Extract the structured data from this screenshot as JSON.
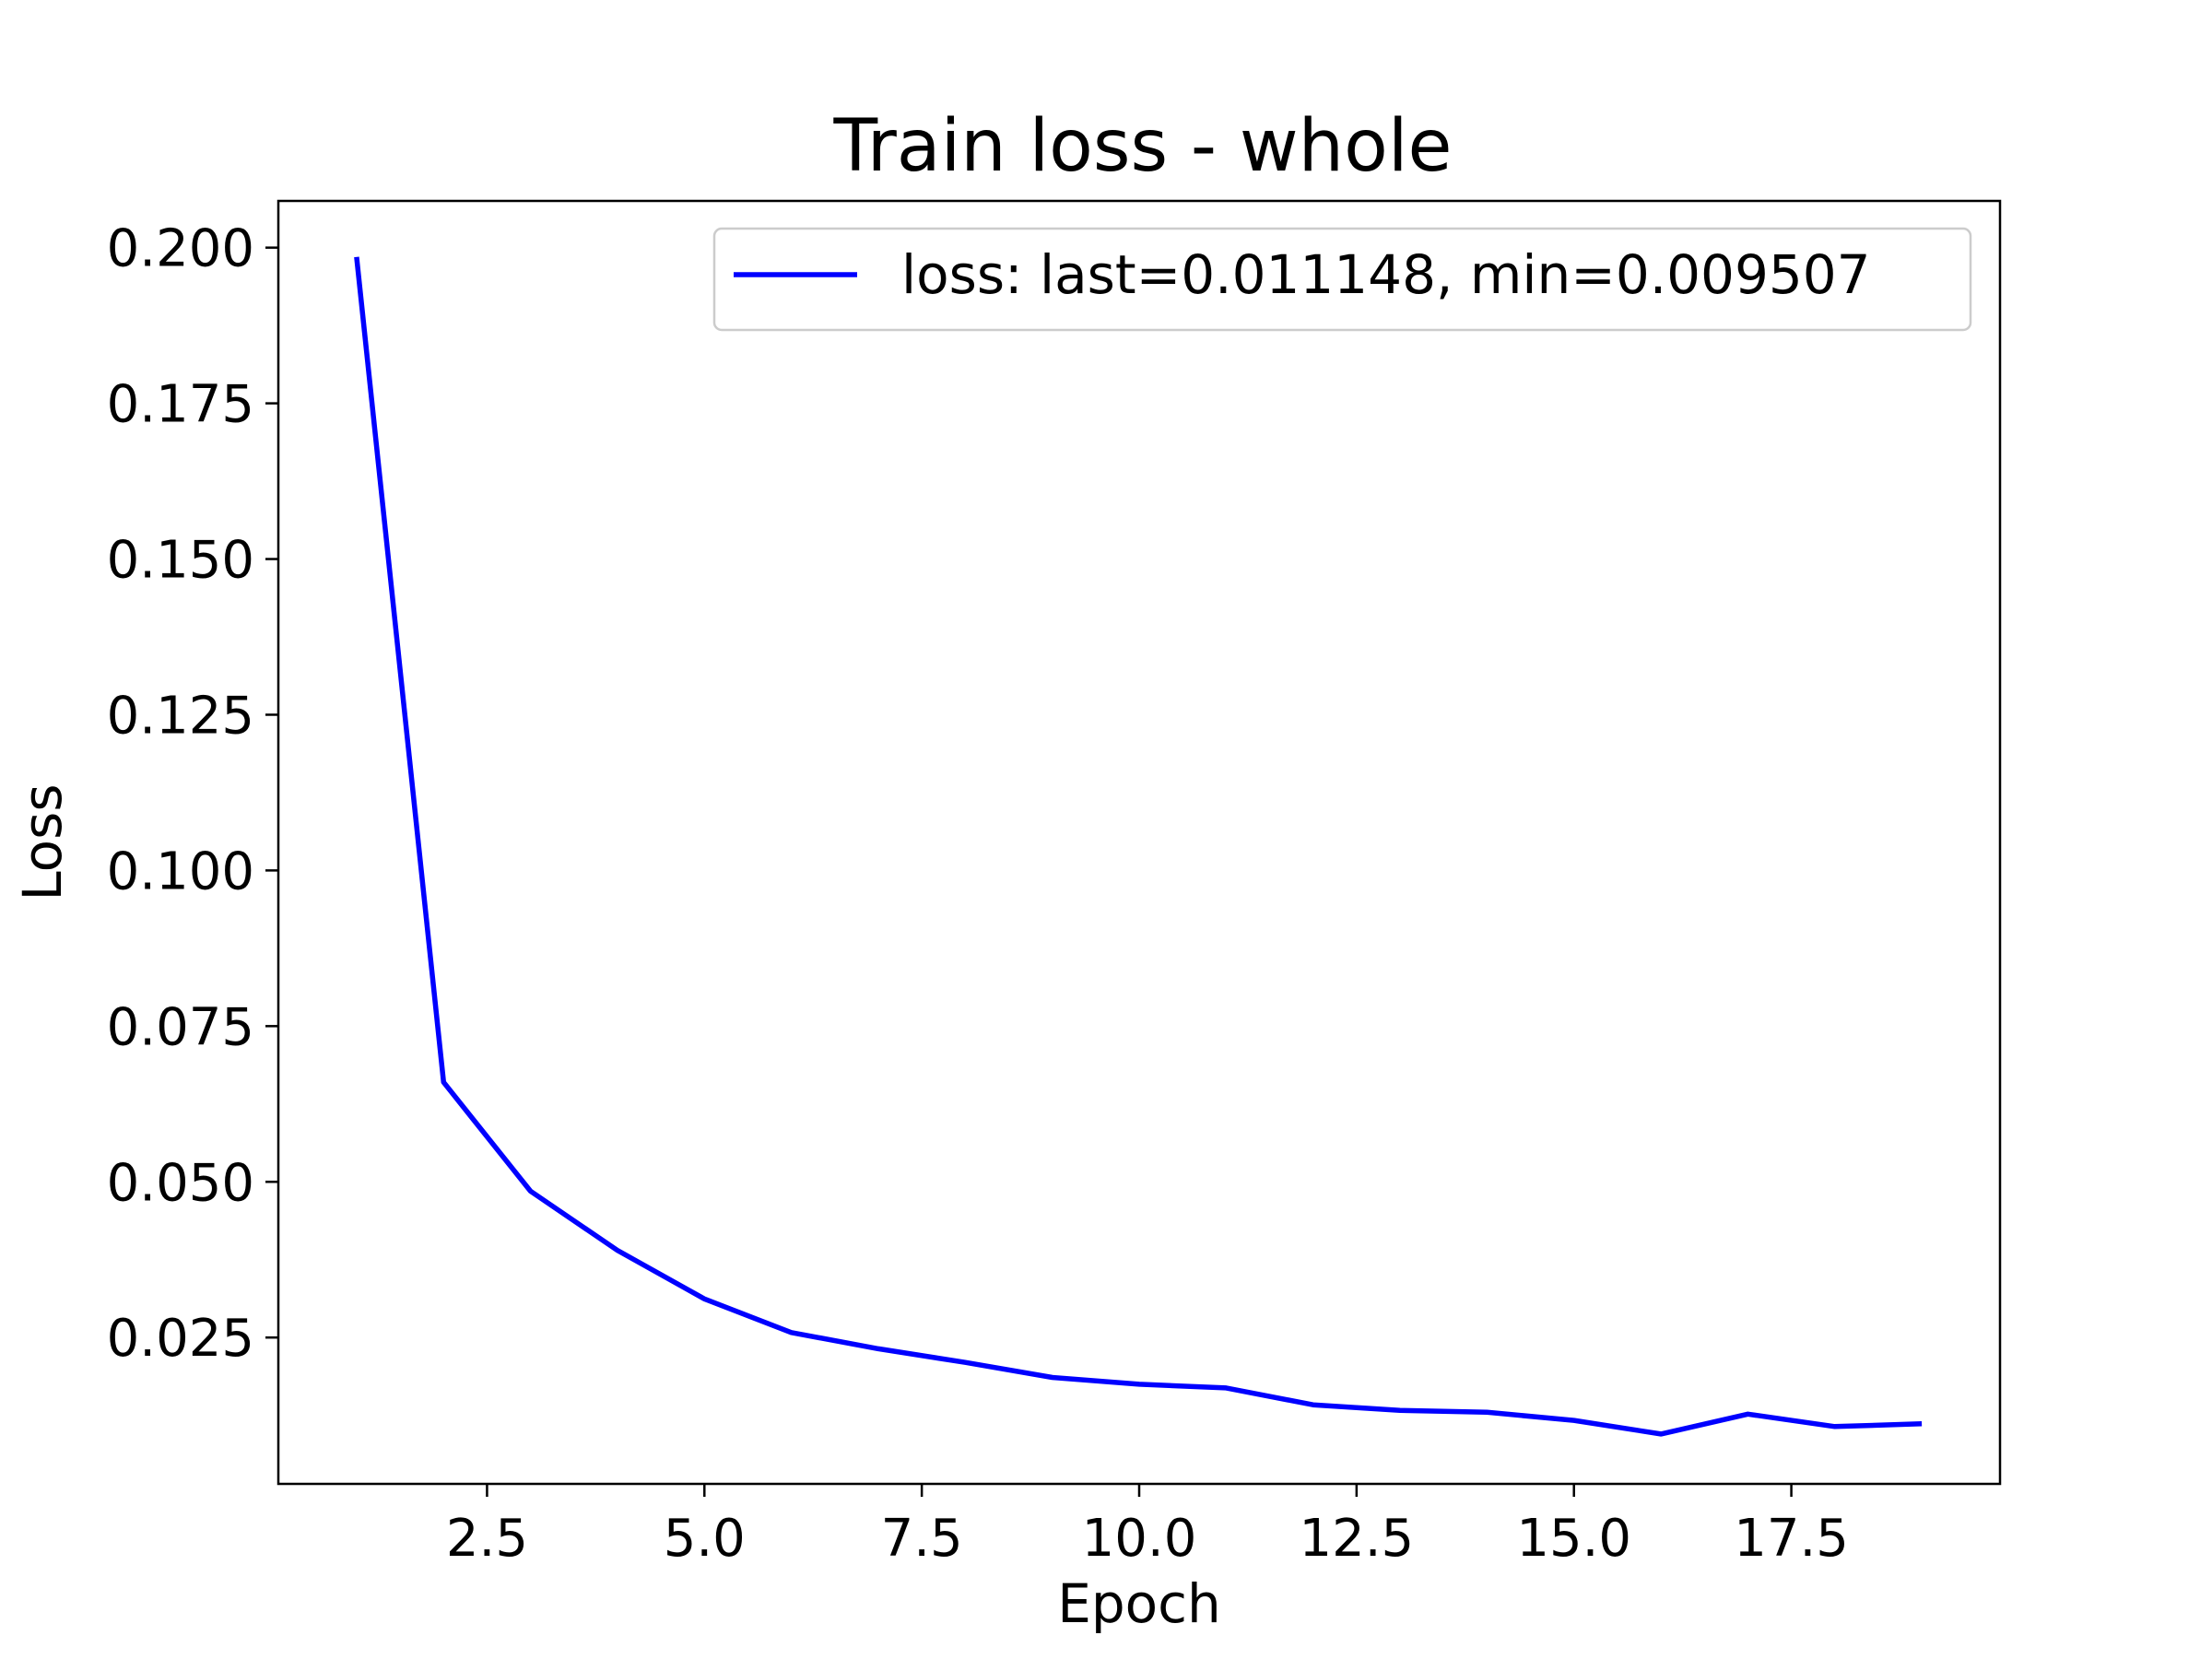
{
  "chart_data": {
    "type": "line",
    "title": "Train loss - whole",
    "xlabel": "Epoch",
    "ylabel": "Loss",
    "xlim": [
      0.1,
      19.9
    ],
    "ylim": [
      0.0015,
      0.2075
    ],
    "xticks": [
      2.5,
      5.0,
      7.5,
      10.0,
      12.5,
      15.0,
      17.5
    ],
    "xtick_labels": [
      "2.5",
      "5.0",
      "7.5",
      "10.0",
      "12.5",
      "15.0",
      "17.5"
    ],
    "yticks": [
      0.025,
      0.05,
      0.075,
      0.1,
      0.125,
      0.15,
      0.175,
      0.2
    ],
    "ytick_labels": [
      "0.025",
      "0.050",
      "0.075",
      "0.100",
      "0.125",
      "0.150",
      "0.175",
      "0.200"
    ],
    "grid": false,
    "legend_position": "top-right",
    "series": [
      {
        "name": "loss: last=0.011148, min=0.009507",
        "color": "#0000ff",
        "x": [
          1,
          2,
          3,
          4,
          5,
          6,
          7,
          8,
          9,
          10,
          11,
          12,
          13,
          14,
          15,
          16,
          17,
          18,
          19
        ],
        "y": [
          0.1985,
          0.066,
          0.0485,
          0.039,
          0.0312,
          0.0258,
          0.0232,
          0.021,
          0.0186,
          0.0175,
          0.0169,
          0.0142,
          0.0133,
          0.013,
          0.0117,
          0.009507,
          0.0127,
          0.0107,
          0.011148
        ]
      }
    ]
  }
}
